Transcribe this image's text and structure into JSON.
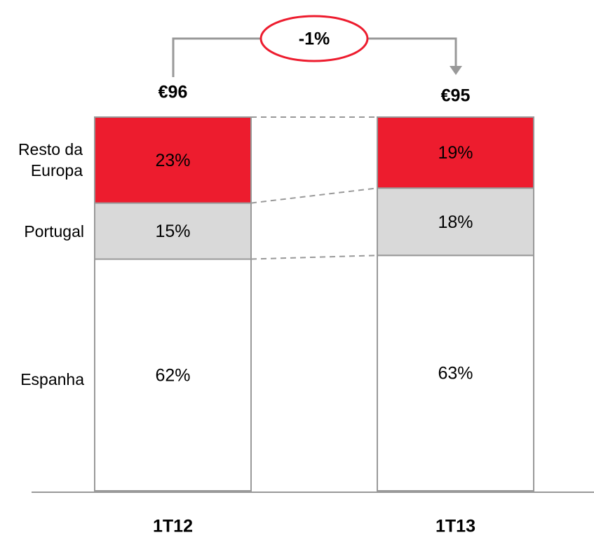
{
  "chart_data": {
    "type": "stacked_bar",
    "categories": [
      "1T12",
      "1T13"
    ],
    "series": [
      {
        "name": "Espanha",
        "color": "#ffffff",
        "values": [
          62,
          63
        ],
        "value_labels": [
          "62%",
          "63%"
        ]
      },
      {
        "name": "Portugal",
        "color": "#d9d9d9",
        "values": [
          15,
          18
        ],
        "value_labels": [
          "15%",
          "18%"
        ]
      },
      {
        "name": "Resto da Europa",
        "color": "#ed1c2e",
        "values": [
          23,
          19
        ],
        "value_labels": [
          "23%",
          "19%"
        ]
      }
    ],
    "totals": {
      "values": [
        96,
        95
      ],
      "value_labels": [
        "€96",
        "€95"
      ]
    },
    "change": {
      "value": -1,
      "label": "-1%"
    },
    "ylim": [
      0,
      100
    ]
  }
}
